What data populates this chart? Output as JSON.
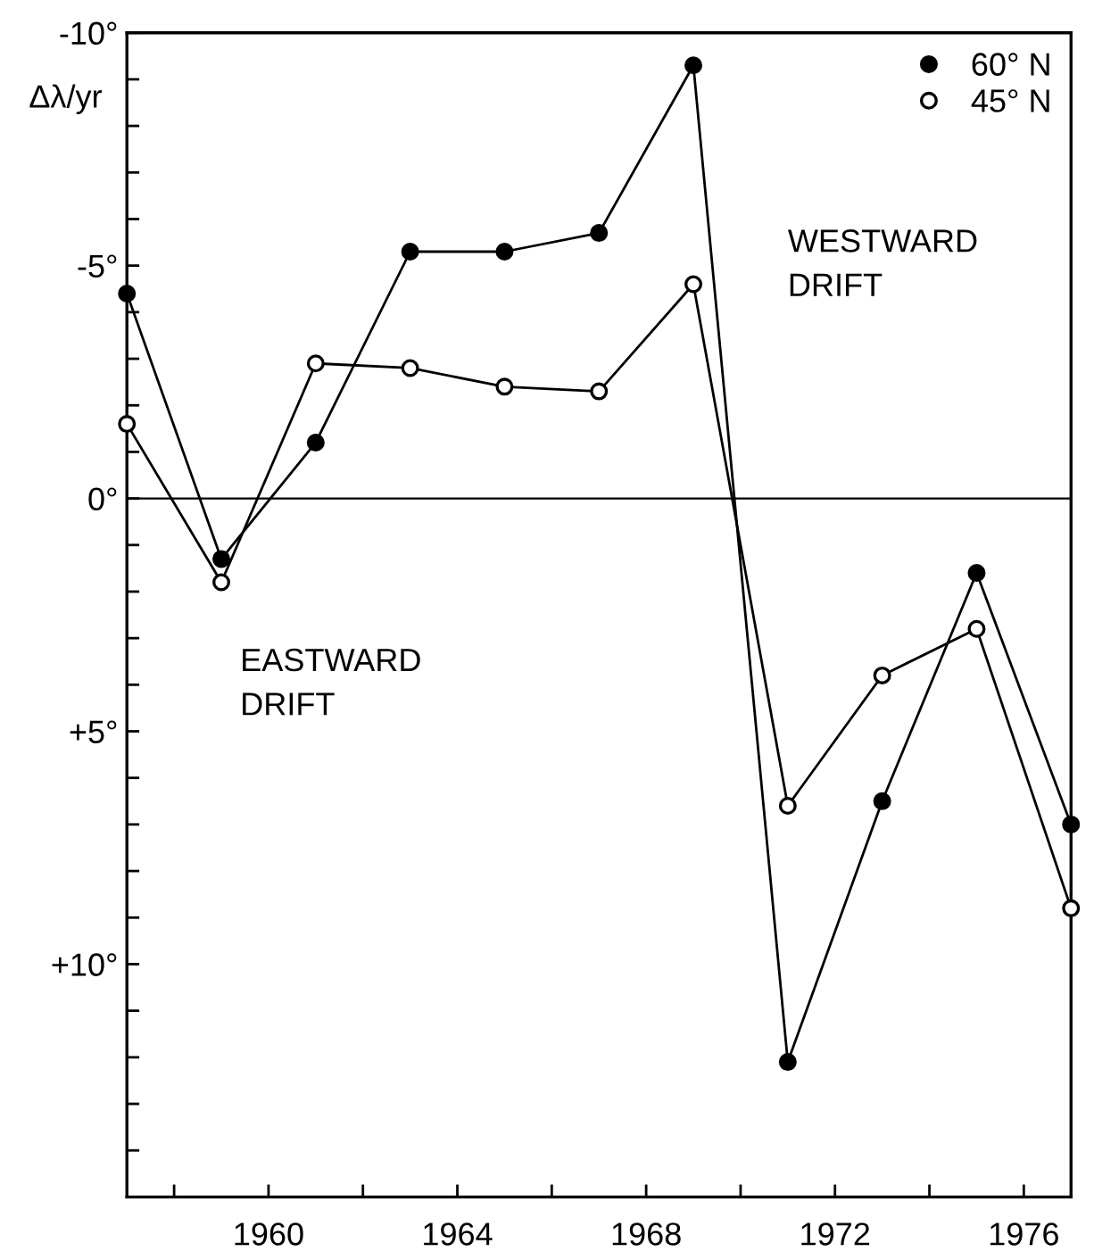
{
  "chart_data": {
    "type": "line",
    "ylabel": "Δλ/yr",
    "x": [
      1957,
      1959,
      1961,
      1963,
      1965,
      1967,
      1969,
      1971,
      1973,
      1975,
      1977
    ],
    "series": [
      {
        "name": "60° N",
        "color": "#000000",
        "values": [
          -4.4,
          1.3,
          -1.2,
          -5.3,
          -5.3,
          -5.7,
          -9.3,
          12.1,
          6.5,
          1.6,
          7.0
        ]
      },
      {
        "name": "45° N",
        "color": "#000000",
        "values": [
          -1.6,
          1.8,
          -2.9,
          -2.8,
          -2.4,
          -2.3,
          -4.6,
          6.6,
          3.8,
          2.8,
          8.8
        ]
      }
    ],
    "xlim": [
      1957,
      1977
    ],
    "xticks": [
      {
        "value": 1958,
        "label": null
      },
      1960,
      {
        "value": 1962,
        "label": null
      },
      1964,
      {
        "value": 1966,
        "label": null
      },
      1968,
      {
        "value": 1970,
        "label": null
      },
      1972,
      {
        "value": 1974,
        "label": null
      },
      1976
    ],
    "ylim": [
      15,
      -10
    ],
    "yticks": [
      {
        "value": -10,
        "label": "-10°"
      },
      {
        "value": -9,
        "label": null
      },
      {
        "value": -8,
        "label": null
      },
      {
        "value": -7,
        "label": null
      },
      {
        "value": -6,
        "label": null
      },
      {
        "value": -5,
        "label": "-5°"
      },
      {
        "value": -4,
        "label": null
      },
      {
        "value": -3,
        "label": null
      },
      {
        "value": -2,
        "label": null
      },
      {
        "value": -1,
        "label": null
      },
      {
        "value": 0,
        "label": "0°"
      },
      {
        "value": 1,
        "label": null
      },
      {
        "value": 2,
        "label": null
      },
      {
        "value": 3,
        "label": null
      },
      {
        "value": 4,
        "label": null
      },
      {
        "value": 5,
        "label": "+5°"
      },
      {
        "value": 6,
        "label": null
      },
      {
        "value": 7,
        "label": null
      },
      {
        "value": 8,
        "label": null
      },
      {
        "value": 9,
        "label": null
      },
      {
        "value": 10,
        "label": "+10°"
      },
      {
        "value": 11,
        "label": null
      },
      {
        "value": 12,
        "label": null
      },
      {
        "value": 13,
        "label": null
      },
      {
        "value": 14,
        "label": null
      }
    ],
    "ref_lines": [
      {
        "axis": "y",
        "value": 0,
        "color": "#000000"
      }
    ],
    "annotations": [
      "WESTWARD\nDRIFT",
      "EASTWARD\nDRIFT"
    ],
    "marker": "circle",
    "line_style": "solid",
    "legend": "top right",
    "grid": false
  }
}
